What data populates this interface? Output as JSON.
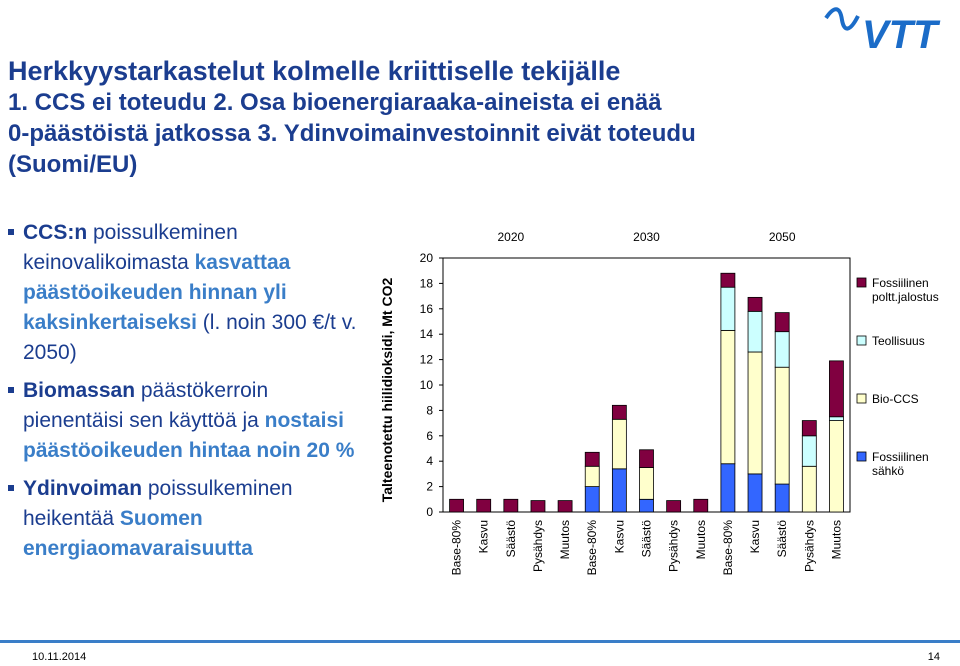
{
  "title": {
    "line1": "Herkkyystarkastelut kolmelle kriittiselle tekijälle",
    "line2": "1. CCS ei toteudu 2. Osa bioenergiaraaka-aineista ei enää",
    "line3": "0-päästöistä jatkossa 3. Ydinvoimainvestoinnit eivät toteudu",
    "line4": "(Suomi/EU)"
  },
  "logo_text": "VTT",
  "bullets": [
    {
      "b": "CCS:n",
      "t1": " poissulkeminen keinovalikoimasta ",
      "c": "kasvattaa päästöoikeuden hinnan yli kaksinkertaiseksi",
      "t2": " (l. noin 300 €/t v. 2050)"
    },
    {
      "b": "Biomassan",
      "t1": " päästökerroin pienentäisi sen käyttöä ja ",
      "c": "nostaisi päästöoikeuden hintaa noin 20 %",
      "t2": ""
    },
    {
      "b": "Ydinvoiman",
      "t1": " poissulkeminen heikentää ",
      "c": "Suomen energiaomavaraisuutta",
      "t2": ""
    }
  ],
  "footer": {
    "date": "10.11.2014",
    "page": "14"
  },
  "chart_data": {
    "type": "bar",
    "stacked": true,
    "ylabel": "Talteenotettu hiilidioksidi, Mt CO2",
    "ylim": [
      0,
      20
    ],
    "yticks": [
      0,
      2,
      4,
      6,
      8,
      10,
      12,
      14,
      16,
      18,
      20
    ],
    "groups": [
      "2020",
      "2030",
      "2050"
    ],
    "categories": [
      "Base-80%",
      "Kasvu",
      "Säästö",
      "Pysähdys",
      "Muutos",
      "Base-80%",
      "Kasvu",
      "Säästö",
      "Pysähdys",
      "Muutos",
      "Base-80%",
      "Kasvu",
      "Säästö",
      "Pysähdys",
      "Muutos"
    ],
    "series": [
      {
        "name": "Fossiilinen sähkö",
        "color": "#3366ff",
        "values": [
          0,
          0,
          0,
          0,
          0,
          2.0,
          3.4,
          1.0,
          0,
          0,
          3.8,
          3.0,
          2.2,
          0,
          0
        ]
      },
      {
        "name": "Bio-CCS",
        "color": "#ffffcc",
        "values": [
          0,
          0,
          0,
          0,
          0,
          1.6,
          3.9,
          2.5,
          0,
          0,
          10.5,
          9.6,
          9.2,
          3.6,
          7.2
        ]
      },
      {
        "name": "Teollisuus",
        "color": "#ccffff",
        "values": [
          0,
          0,
          0,
          0,
          0,
          0,
          0,
          0,
          0,
          0,
          3.4,
          3.2,
          2.8,
          2.4,
          0.3
        ]
      },
      {
        "name": "Fossiilinen poltt.jalostus",
        "color": "#800040",
        "values": [
          1.0,
          1.0,
          1.0,
          0.9,
          0.9,
          1.1,
          1.1,
          1.4,
          0.9,
          1.0,
          1.1,
          1.1,
          1.5,
          1.2,
          4.4
        ]
      }
    ],
    "grid": false,
    "legend_position": "right"
  }
}
